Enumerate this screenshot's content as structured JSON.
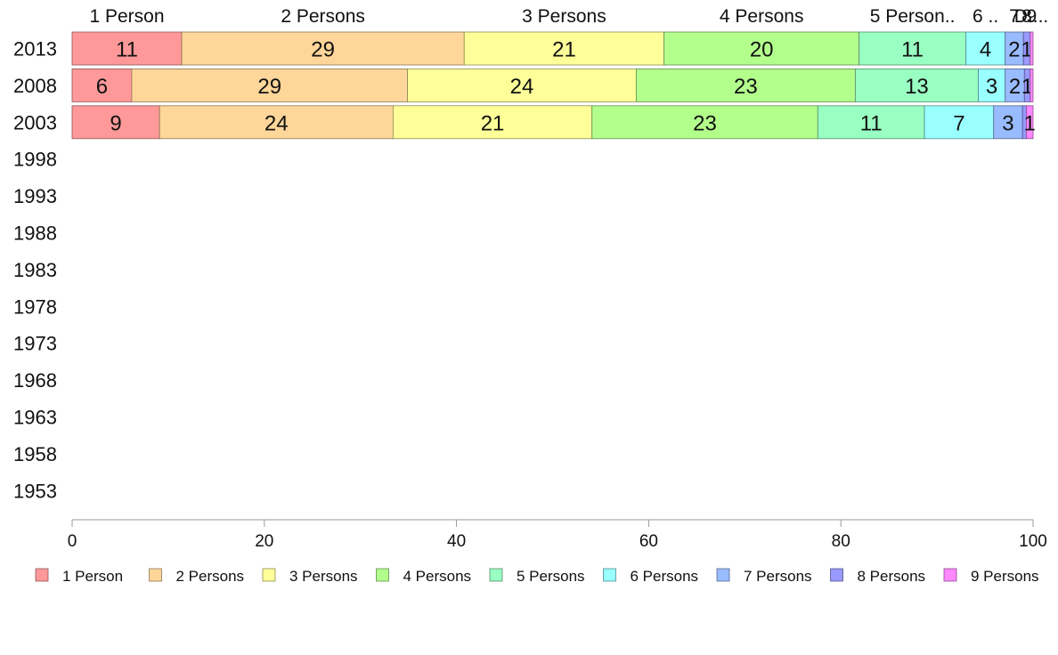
{
  "chart_data": {
    "type": "bar",
    "orientation": "horizontal",
    "stacked": true,
    "title": "",
    "xlabel": "",
    "ylabel": "",
    "xlim": [
      0,
      100
    ],
    "x_ticks": [
      0,
      20,
      40,
      60,
      80,
      100
    ],
    "categories": [
      "2013",
      "2008",
      "2003",
      "1998",
      "1993",
      "1988",
      "1983",
      "1978",
      "1973",
      "1968",
      "1963",
      "1958",
      "1953"
    ],
    "top_labels": [
      "1 Person",
      "2 Persons",
      "3 Persons",
      "4 Persons",
      "5 Person..",
      "6 ..",
      "7",
      "8",
      "9",
      "D...."
    ],
    "series": [
      {
        "name": "1 Person",
        "color": "#ff9999",
        "values": [
          11.4,
          6.2,
          9.1,
          null,
          null,
          null,
          null,
          null,
          null,
          null,
          null,
          null,
          null
        ],
        "labels": [
          "11",
          "6",
          "9"
        ]
      },
      {
        "name": "2 Persons",
        "color": "#ffd699",
        "values": [
          29.4,
          28.7,
          24.3,
          null,
          null,
          null,
          null,
          null,
          null,
          null,
          null,
          null,
          null
        ],
        "labels": [
          "29",
          "29",
          "24"
        ]
      },
      {
        "name": "3 Persons",
        "color": "#ffff99",
        "values": [
          20.8,
          23.8,
          20.7,
          null,
          null,
          null,
          null,
          null,
          null,
          null,
          null,
          null,
          null
        ],
        "labels": [
          "21",
          "24",
          "21"
        ]
      },
      {
        "name": "4 Persons",
        "color": "#b3ff8c",
        "values": [
          20.3,
          22.8,
          23.5,
          null,
          null,
          null,
          null,
          null,
          null,
          null,
          null,
          null,
          null
        ],
        "labels": [
          "20",
          "23",
          "23"
        ]
      },
      {
        "name": "5 Persons",
        "color": "#99ffc2",
        "values": [
          11.1,
          12.8,
          11.1,
          null,
          null,
          null,
          null,
          null,
          null,
          null,
          null,
          null,
          null
        ],
        "labels": [
          "11",
          "13",
          "11"
        ]
      },
      {
        "name": "6 Persons",
        "color": "#99ffff",
        "values": [
          4.1,
          2.8,
          7.2,
          null,
          null,
          null,
          null,
          null,
          null,
          null,
          null,
          null,
          null
        ],
        "labels": [
          "4",
          "3",
          "7"
        ]
      },
      {
        "name": "7 Persons",
        "color": "#99bbff",
        "values": [
          1.9,
          2.0,
          3.0,
          null,
          null,
          null,
          null,
          null,
          null,
          null,
          null,
          null,
          null
        ],
        "labels": [
          "2",
          "2",
          "3"
        ]
      },
      {
        "name": "8 Persons",
        "color": "#9999ff",
        "values": [
          0.7,
          0.6,
          0.4,
          null,
          null,
          null,
          null,
          null,
          null,
          null,
          null,
          null,
          null
        ],
        "labels": [
          "1",
          "1",
          ""
        ]
      },
      {
        "name": "9 Persons",
        "color": "#ff88ff",
        "values": [
          0.3,
          0.3,
          0.7,
          null,
          null,
          null,
          null,
          null,
          null,
          null,
          null,
          null,
          null
        ],
        "labels": [
          "",
          "",
          "1"
        ]
      }
    ],
    "legend": {
      "placement": "bottom"
    },
    "grid": false
  }
}
